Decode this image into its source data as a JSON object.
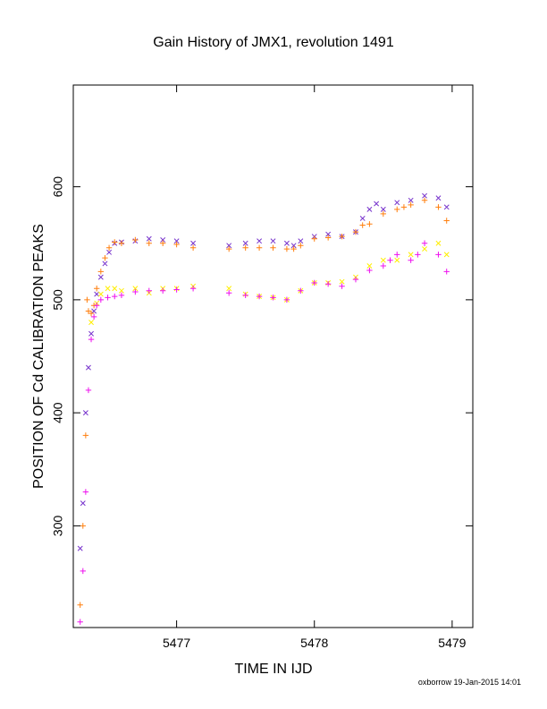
{
  "chart_data": {
    "type": "scatter",
    "title": "Gain History of JMX1, revolution 1491",
    "xlabel": "TIME IN IJD",
    "ylabel": "POSITION OF Cd CALIBRATION PEAKS",
    "xlim": [
      5476.25,
      5479.15
    ],
    "ylim": [
      210,
      690
    ],
    "x_ticks": [
      5477,
      5478,
      5479
    ],
    "y_ticks": [
      300,
      400,
      500,
      600
    ],
    "grid": false,
    "footer": "oxborrow 19-Jan-2015 14:01",
    "colors": {
      "purple": "#7733cc",
      "orange": "#ff7f0e",
      "yellow": "#ffee00",
      "magenta": "#ee11ee"
    },
    "series": [
      {
        "color": "#7733cc",
        "marker": "x",
        "segments": [
          {
            "x": [
              5476.3,
              5476.32,
              5476.34,
              5476.36,
              5476.38,
              5476.4,
              5476.42,
              5476.45,
              5476.48,
              5476.51,
              5476.55,
              5476.6,
              5476.7,
              5476.8,
              5476.9,
              5477.0,
              5477.12
            ],
            "y": [
              280,
              320,
              400,
              440,
              470,
              490,
              505,
              520,
              532,
              542,
              550,
              551,
              552,
              554,
              553,
              552,
              550
            ]
          },
          {
            "x": [
              5477.38,
              5477.5,
              5477.6,
              5477.7,
              5477.8,
              5477.85,
              5477.9,
              5478.0,
              5478.1,
              5478.2,
              5478.3,
              5478.35,
              5478.4,
              5478.45,
              5478.5,
              5478.6,
              5478.7,
              5478.8,
              5478.9,
              5478.96
            ],
            "y": [
              548,
              550,
              552,
              552,
              550,
              548,
              552,
              556,
              558,
              556,
              560,
              572,
              580,
              585,
              580,
              586,
              588,
              592,
              590,
              582
            ]
          }
        ]
      },
      {
        "color": "#ff7f0e",
        "marker": "+",
        "segments": [
          {
            "x": [
              5476.3,
              5476.32,
              5476.34,
              5476.35,
              5476.36,
              5476.38,
              5476.4,
              5476.42,
              5476.45,
              5476.48,
              5476.51,
              5476.55,
              5476.6,
              5476.7,
              5476.8,
              5476.9,
              5477.0,
              5477.12
            ],
            "y": [
              230,
              300,
              380,
              500,
              490,
              488,
              495,
              510,
              525,
              537,
              546,
              551,
              550,
              553,
              550,
              550,
              549,
              546
            ]
          },
          {
            "x": [
              5477.38,
              5477.5,
              5477.6,
              5477.7,
              5477.8,
              5477.85,
              5477.9,
              5478.0,
              5478.1,
              5478.2,
              5478.3,
              5478.35,
              5478.4,
              5478.5,
              5478.6,
              5478.65,
              5478.7,
              5478.8,
              5478.9,
              5478.96
            ],
            "y": [
              545,
              546,
              546,
              546,
              545,
              545,
              548,
              554,
              555,
              556,
              560,
              566,
              567,
              576,
              580,
              582,
              584,
              588,
              582,
              570
            ]
          }
        ]
      },
      {
        "color": "#ffee00",
        "marker": "x",
        "segments": [
          {
            "x": [
              5476.38,
              5476.42,
              5476.45,
              5476.5,
              5476.55,
              5476.6,
              5476.7,
              5476.8,
              5476.9,
              5477.0,
              5477.12
            ],
            "y": [
              480,
              497,
              505,
              510,
              510,
              508,
              510,
              506,
              510,
              510,
              512
            ]
          },
          {
            "x": [
              5477.38,
              5477.5,
              5477.6,
              5477.7,
              5477.8,
              5477.9,
              5478.0,
              5478.1,
              5478.2,
              5478.3,
              5478.4,
              5478.5,
              5478.6,
              5478.7,
              5478.8,
              5478.9,
              5478.96
            ],
            "y": [
              510,
              505,
              503,
              502,
              500,
              508,
              515,
              515,
              516,
              520,
              530,
              535,
              535,
              540,
              545,
              550,
              540
            ]
          }
        ]
      },
      {
        "color": "#ee11ee",
        "marker": "+",
        "segments": [
          {
            "x": [
              5476.3,
              5476.32,
              5476.34,
              5476.36,
              5476.38,
              5476.4,
              5476.42,
              5476.45,
              5476.5,
              5476.55,
              5476.6,
              5476.7,
              5476.8,
              5476.9,
              5477.0,
              5477.12
            ],
            "y": [
              215,
              260,
              330,
              420,
              465,
              485,
              495,
              500,
              502,
              503,
              504,
              507,
              508,
              508,
              509,
              510
            ]
          },
          {
            "x": [
              5477.38,
              5477.5,
              5477.6,
              5477.7,
              5477.8,
              5477.9,
              5478.0,
              5478.1,
              5478.2,
              5478.3,
              5478.4,
              5478.5,
              5478.55,
              5478.6,
              5478.7,
              5478.75,
              5478.8,
              5478.9,
              5478.96
            ],
            "y": [
              506,
              504,
              503,
              502,
              500,
              508,
              515,
              514,
              512,
              518,
              526,
              530,
              535,
              540,
              535,
              540,
              550,
              540,
              525
            ]
          }
        ]
      }
    ]
  }
}
